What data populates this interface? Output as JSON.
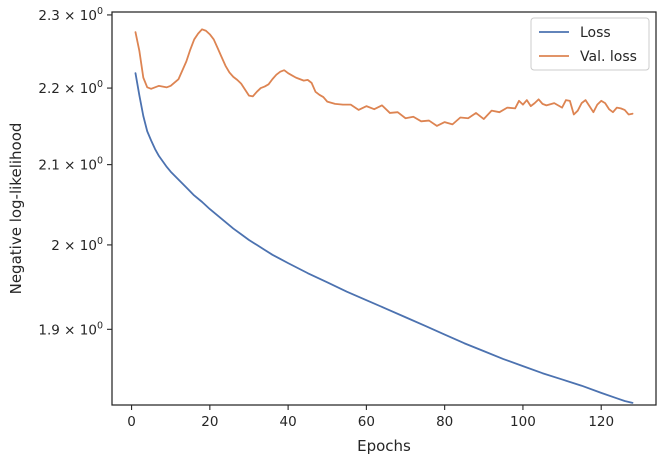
{
  "chart_data": {
    "type": "line",
    "xlabel": "Epochs",
    "ylabel": "Negative log-likelihood",
    "xlim": [
      -5,
      134
    ],
    "ylim": [
      1.8146,
      2.3041
    ],
    "y_scale": "log",
    "grid": false,
    "legend_position": "top-right",
    "x_ticks": [
      0,
      20,
      40,
      60,
      80,
      100,
      120
    ],
    "x_tick_labels": [
      "0",
      "20",
      "40",
      "60",
      "80",
      "100",
      "120"
    ],
    "y_ticks": [
      1.9,
      2.0,
      2.1,
      2.2,
      2.3
    ],
    "y_tick_labels": [
      {
        "base": "1.9 × 10",
        "exp": "0"
      },
      {
        "base": "2 × 10",
        "exp": "0"
      },
      {
        "base": "2.1 × 10",
        "exp": "0"
      },
      {
        "base": "2.2 × 10",
        "exp": "0"
      },
      {
        "base": "2.3 × 10",
        "exp": "0"
      }
    ],
    "series": [
      {
        "name": "Loss",
        "color": "#4c72b0",
        "x": [
          1,
          2,
          3,
          4,
          5,
          6,
          7,
          8,
          9,
          10,
          12,
          14,
          16,
          18,
          20,
          22,
          24,
          26,
          28,
          30,
          32,
          34,
          36,
          38,
          40,
          45,
          50,
          55,
          60,
          65,
          70,
          75,
          80,
          85,
          90,
          95,
          100,
          105,
          110,
          115,
          120,
          124,
          126,
          128
        ],
        "y": [
          2.22,
          2.19,
          2.163,
          2.143,
          2.131,
          2.12,
          2.111,
          2.104,
          2.097,
          2.091,
          2.081,
          2.071,
          2.061,
          2.053,
          2.044,
          2.036,
          2.028,
          2.02,
          2.013,
          2.006,
          2.0,
          1.994,
          1.988,
          1.983,
          1.978,
          1.966,
          1.955,
          1.944,
          1.934,
          1.924,
          1.914,
          1.904,
          1.894,
          1.884,
          1.875,
          1.866,
          1.858,
          1.85,
          1.843,
          1.836,
          1.828,
          1.822,
          1.819,
          1.817
        ]
      },
      {
        "name": "Val. loss",
        "color": "#dd8452",
        "x": [
          1,
          2,
          3,
          4,
          5,
          6,
          7,
          8,
          9,
          10,
          12,
          14,
          15,
          16,
          17,
          18,
          19,
          20,
          21,
          22,
          23,
          24,
          25,
          26,
          27,
          28,
          29,
          30,
          31,
          32,
          33,
          34,
          35,
          36,
          37,
          38,
          39,
          40,
          41,
          42,
          43,
          44,
          45,
          46,
          47,
          48,
          49,
          50,
          52,
          54,
          56,
          58,
          60,
          62,
          64,
          66,
          68,
          70,
          72,
          74,
          76,
          78,
          80,
          82,
          84,
          86,
          88,
          90,
          92,
          94,
          96,
          98,
          99,
          100,
          101,
          102,
          103,
          104,
          105,
          106,
          108,
          110,
          111,
          112,
          113,
          114,
          115,
          116,
          117,
          118,
          119,
          120,
          121,
          122,
          123,
          124,
          125,
          126,
          127,
          128
        ],
        "y": [
          2.276,
          2.25,
          2.214,
          2.201,
          2.199,
          2.201,
          2.203,
          2.202,
          2.201,
          2.203,
          2.212,
          2.236,
          2.252,
          2.266,
          2.274,
          2.28,
          2.278,
          2.273,
          2.266,
          2.254,
          2.242,
          2.23,
          2.221,
          2.215,
          2.211,
          2.206,
          2.198,
          2.19,
          2.189,
          2.195,
          2.2,
          2.202,
          2.205,
          2.212,
          2.218,
          2.222,
          2.224,
          2.22,
          2.217,
          2.214,
          2.212,
          2.21,
          2.211,
          2.207,
          2.195,
          2.191,
          2.188,
          2.182,
          2.179,
          2.178,
          2.178,
          2.171,
          2.176,
          2.172,
          2.177,
          2.167,
          2.168,
          2.16,
          2.162,
          2.156,
          2.157,
          2.15,
          2.155,
          2.152,
          2.161,
          2.16,
          2.167,
          2.159,
          2.17,
          2.168,
          2.174,
          2.173,
          2.183,
          2.178,
          2.184,
          2.176,
          2.18,
          2.185,
          2.179,
          2.177,
          2.18,
          2.174,
          2.184,
          2.183,
          2.165,
          2.17,
          2.18,
          2.184,
          2.176,
          2.168,
          2.178,
          2.183,
          2.18,
          2.172,
          2.168,
          2.174,
          2.173,
          2.171,
          2.165,
          2.166
        ]
      }
    ]
  }
}
